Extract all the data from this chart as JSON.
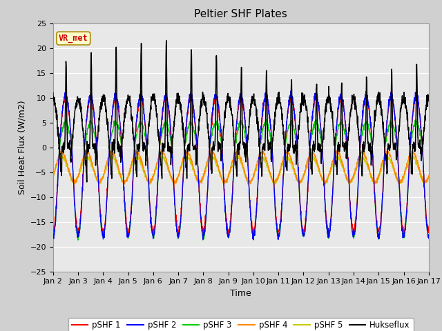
{
  "title": "Peltier SHF Plates",
  "xlabel": "Time",
  "ylabel": "Soil Heat Flux (W/m2)",
  "ylim": [
    -25,
    25
  ],
  "xlim": [
    0,
    15
  ],
  "xtick_labels": [
    "Jan 2",
    "Jan 3",
    "Jan 4",
    "Jan 5",
    "Jan 6",
    "Jan 7",
    "Jan 8",
    "Jan 9",
    "Jan 10",
    "Jan 11",
    "Jan 12",
    "Jan 13",
    "Jan 14",
    "Jan 15",
    "Jan 16",
    "Jan 17"
  ],
  "series_colors": {
    "pSHF 1": "#ff0000",
    "pSHF 2": "#0000ff",
    "pSHF 3": "#00cc00",
    "pSHF 4": "#ff8800",
    "pSHF 5": "#cccc00",
    "Hukseflux": "#000000"
  },
  "annotation_text": "VR_met",
  "annotation_color": "#cc0000",
  "annotation_bg": "#ffffcc",
  "background_color": "#d0d0d0",
  "plot_bg_color": "#e8e8e8",
  "title_fontsize": 11,
  "axis_label_fontsize": 9,
  "tick_fontsize": 8,
  "legend_fontsize": 8.5
}
